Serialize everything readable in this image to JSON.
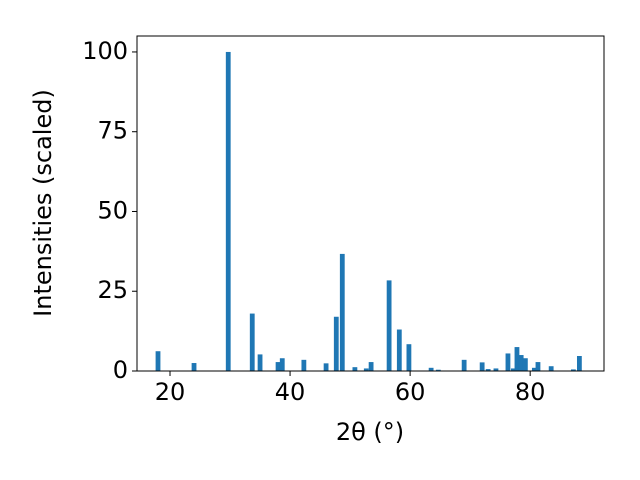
{
  "chart_data": {
    "type": "bar",
    "xlabel": "2θ (°)",
    "ylabel": "Intensities (scaled)",
    "x": [
      18.0,
      24.0,
      29.7,
      33.7,
      35.0,
      38.0,
      38.7,
      42.3,
      46.0,
      47.7,
      48.7,
      50.8,
      52.7,
      53.5,
      56.5,
      58.2,
      59.8,
      63.5,
      64.7,
      69.0,
      72.0,
      73.0,
      74.3,
      76.3,
      77.2,
      77.8,
      78.5,
      79.2,
      80.7,
      81.3,
      83.5,
      87.2,
      88.2
    ],
    "values": [
      6.2,
      2.5,
      100,
      18,
      5.2,
      2.8,
      4,
      3.5,
      2.4,
      17,
      36.7,
      1.2,
      0.8,
      2.8,
      28.4,
      13,
      8.4,
      1,
      0.4,
      3.5,
      2.7,
      0.6,
      0.8,
      5.5,
      0.8,
      7.5,
      5,
      4,
      1,
      2.8,
      1.5,
      0.5,
      4.7
    ],
    "bar_width": 0.8,
    "color": "#1f77b4",
    "xlim": [
      14.5,
      92.3
    ],
    "xticks": [
      20,
      40,
      60,
      80
    ],
    "ylim": [
      0,
      105
    ],
    "yticks": [
      0,
      25,
      50,
      75,
      100
    ]
  }
}
